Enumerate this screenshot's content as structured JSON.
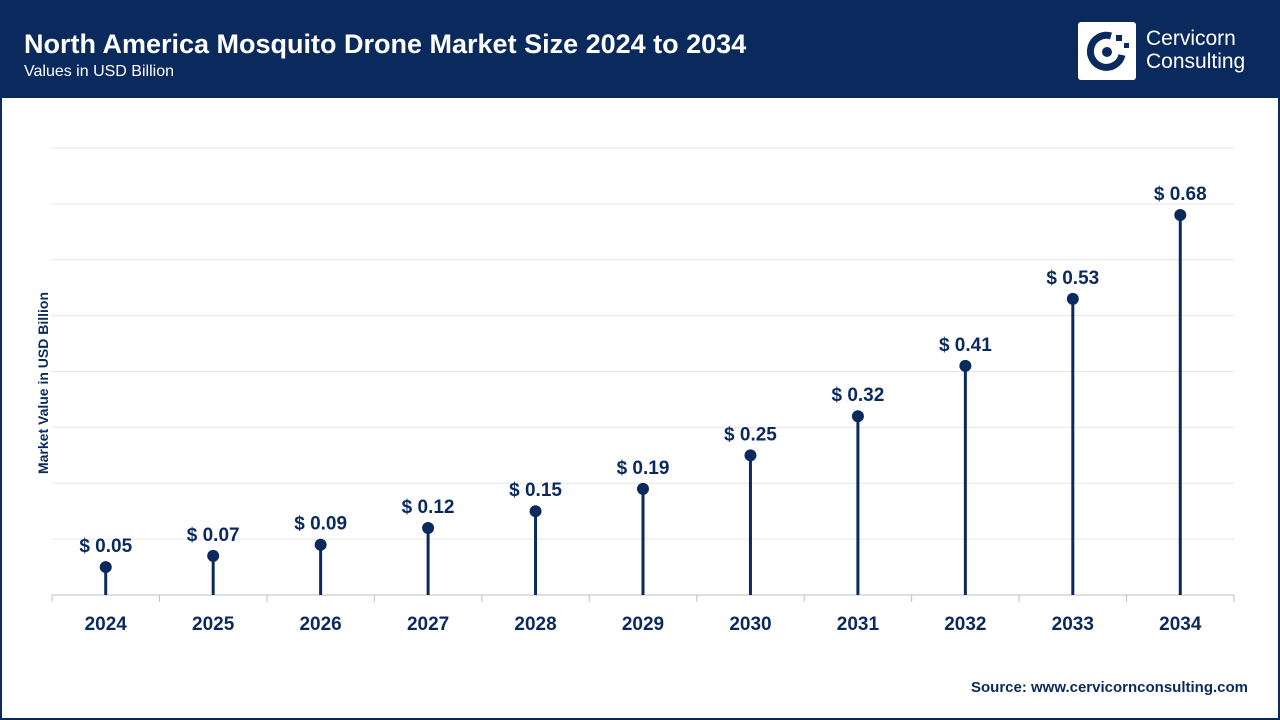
{
  "header": {
    "title": "North America Mosquito Drone Market Size 2024 to 2034",
    "subtitle": "Values in USD Billion"
  },
  "logo": {
    "line1": "Cervicorn",
    "line2": "Consulting",
    "icon": "cervicorn-logo-icon"
  },
  "source": "Source: www.cervicornconsulting.com",
  "colors": {
    "brand": "#0a2a5e",
    "accent": "#1a3f7a",
    "grid": "#e6e6e6"
  },
  "chart_data": {
    "type": "lollipop",
    "title": "North America Mosquito Drone Market Size 2024 to 2034",
    "xlabel": "",
    "ylabel": "Market Value in USD Billion",
    "categories": [
      "2024",
      "2025",
      "2026",
      "2027",
      "2028",
      "2029",
      "2030",
      "2031",
      "2032",
      "2033",
      "2034"
    ],
    "values": [
      0.05,
      0.07,
      0.09,
      0.12,
      0.15,
      0.19,
      0.25,
      0.32,
      0.41,
      0.53,
      0.68
    ],
    "labels": [
      "$ 0.05",
      "$ 0.07",
      "$ 0.09",
      "$ 0.12",
      "$ 0.15",
      "$ 0.19",
      "$ 0.25",
      "$ 0.32",
      "$ 0.41",
      "$ 0.53",
      "$ 0.68"
    ],
    "ylim": [
      0,
      0.8
    ],
    "gridlines": 8,
    "grid": true
  }
}
